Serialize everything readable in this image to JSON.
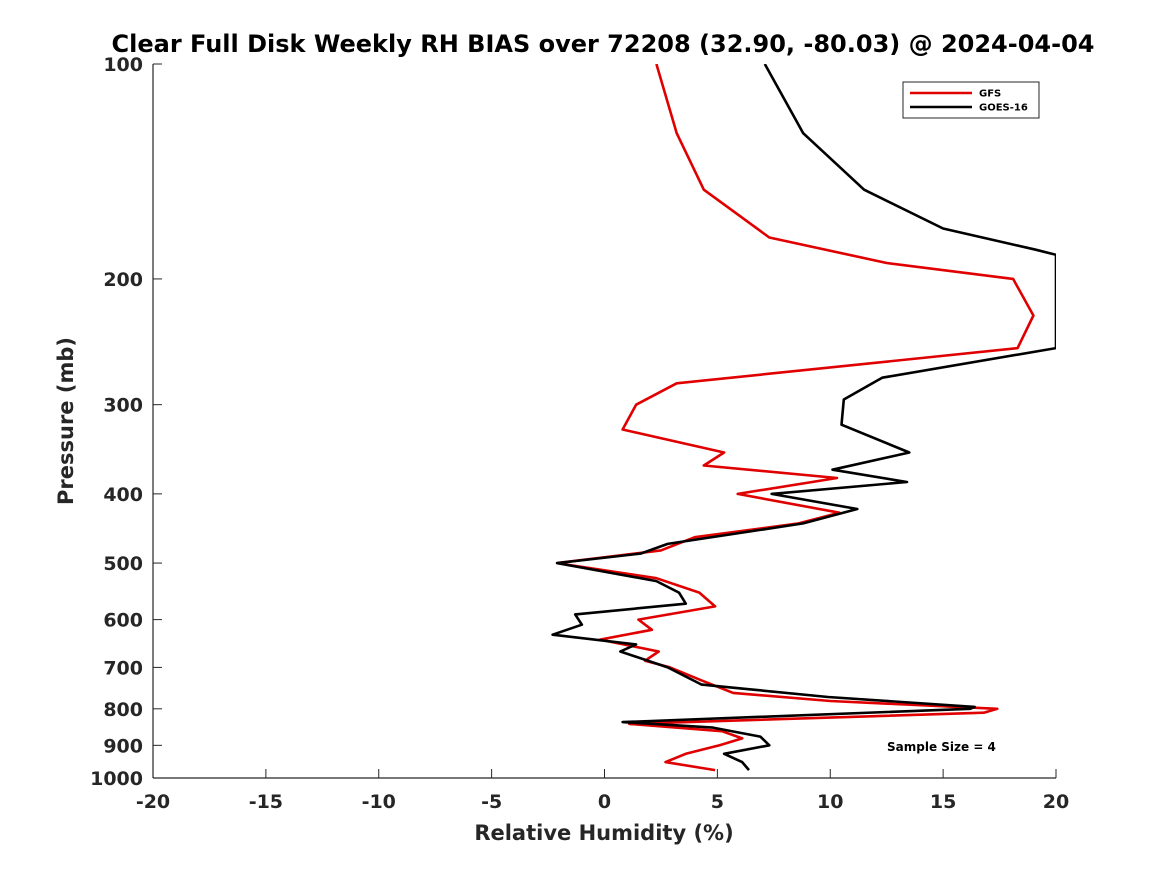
{
  "chart_data": {
    "type": "line",
    "title": "Clear Full Disk Weekly RH BIAS over 72208 (32.90, -80.03) @ 2024-04-04",
    "xlabel": "Relative Humidity (%)",
    "ylabel": "Pressure (mb)",
    "xlim": [
      -20,
      20
    ],
    "ylim": [
      100,
      1000
    ],
    "y_scale": "log",
    "y_reversed": true,
    "x_ticks": [
      "-20",
      "-15",
      "-10",
      "-5",
      "0",
      "5",
      "10",
      "15",
      "20"
    ],
    "y_ticks": [
      "100",
      "200",
      "300",
      "400",
      "500",
      "600",
      "700",
      "800",
      "900",
      "1000"
    ],
    "grid": false,
    "legend_position": "top-right",
    "annotation": "Sample Size = 4",
    "series": [
      {
        "name": "GFS",
        "color": "#e00000",
        "points": [
          [
            2.3,
            100
          ],
          [
            3.2,
            125
          ],
          [
            4.4,
            150
          ],
          [
            7.3,
            175
          ],
          [
            12.5,
            190
          ],
          [
            18.1,
            200
          ],
          [
            19.0,
            225
          ],
          [
            18.3,
            250
          ],
          [
            3.2,
            280
          ],
          [
            1.4,
            300
          ],
          [
            0.8,
            325
          ],
          [
            5.3,
            350
          ],
          [
            4.4,
            365
          ],
          [
            10.3,
            380
          ],
          [
            5.9,
            400
          ],
          [
            10.4,
            425
          ],
          [
            8.6,
            440
          ],
          [
            4.0,
            460
          ],
          [
            2.5,
            480
          ],
          [
            -2.1,
            500
          ],
          [
            2.3,
            525
          ],
          [
            4.2,
            550
          ],
          [
            4.9,
            575
          ],
          [
            1.5,
            600
          ],
          [
            2.1,
            620
          ],
          [
            -0.2,
            640
          ],
          [
            2.4,
            665
          ],
          [
            1.8,
            685
          ],
          [
            2.9,
            700
          ],
          [
            4.3,
            730
          ],
          [
            5.7,
            760
          ],
          [
            10.0,
            780
          ],
          [
            17.4,
            800
          ],
          [
            16.8,
            810
          ],
          [
            1.1,
            840
          ],
          [
            5.2,
            860
          ],
          [
            6.1,
            880
          ],
          [
            5.1,
            900
          ],
          [
            3.6,
            925
          ],
          [
            2.7,
            950
          ],
          [
            4.9,
            975
          ]
        ]
      },
      {
        "name": "GOES-16",
        "color": "#000000",
        "points": [
          [
            7.1,
            100
          ],
          [
            8.8,
            125
          ],
          [
            11.5,
            150
          ],
          [
            15.0,
            170
          ],
          [
            19.1,
            182
          ],
          [
            20.0,
            185
          ],
          [
            20.0,
            250
          ],
          [
            12.3,
            275
          ],
          [
            10.6,
            295
          ],
          [
            10.5,
            320
          ],
          [
            13.5,
            350
          ],
          [
            10.1,
            370
          ],
          [
            13.4,
            385
          ],
          [
            7.4,
            400
          ],
          [
            11.2,
            420
          ],
          [
            8.8,
            440
          ],
          [
            2.8,
            470
          ],
          [
            1.6,
            485
          ],
          [
            -2.1,
            500
          ],
          [
            2.3,
            530
          ],
          [
            3.3,
            550
          ],
          [
            3.6,
            570
          ],
          [
            -1.3,
            590
          ],
          [
            -1.0,
            610
          ],
          [
            -2.3,
            630
          ],
          [
            1.4,
            650
          ],
          [
            0.7,
            665
          ],
          [
            2.8,
            700
          ],
          [
            4.3,
            740
          ],
          [
            6.2,
            750
          ],
          [
            9.9,
            770
          ],
          [
            16.4,
            795
          ],
          [
            16.2,
            800
          ],
          [
            0.8,
            835
          ],
          [
            4.8,
            850
          ],
          [
            6.9,
            875
          ],
          [
            7.3,
            900
          ],
          [
            5.3,
            925
          ],
          [
            6.1,
            950
          ],
          [
            6.4,
            975
          ]
        ]
      }
    ]
  }
}
